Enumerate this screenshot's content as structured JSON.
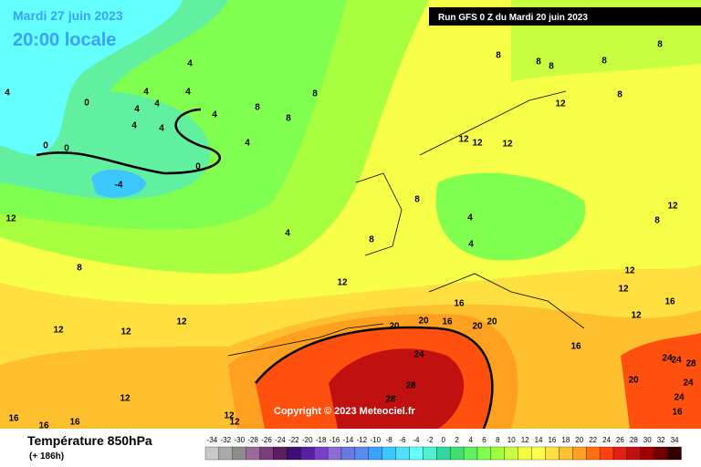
{
  "header": {
    "date": "Mardi 27 juin 2023",
    "time": "20:00 locale",
    "run": "Run GFS 0 Z du Mardi 20 juin 2023"
  },
  "copyright": "Copyright © 2023 Meteociel.fr",
  "footer": {
    "title": "Température 850hPa",
    "lead": "(+ 186h)"
  },
  "contour_labels": [
    0,
    0,
    0,
    0,
    -4,
    4,
    4,
    4,
    4,
    4,
    4,
    4,
    4,
    4,
    4,
    4,
    4,
    4,
    8,
    8,
    8,
    8,
    8,
    8,
    8,
    8,
    8,
    8,
    8,
    8,
    8,
    12,
    12,
    12,
    12,
    12,
    12,
    12,
    12,
    12,
    12,
    12,
    12,
    12,
    12,
    12,
    12,
    16,
    16,
    16,
    16,
    16,
    16,
    16,
    16,
    20,
    20,
    20,
    20,
    20,
    24,
    24,
    24,
    24,
    24,
    28,
    28,
    28
  ],
  "scale": [
    {
      "value": -34,
      "color": "#c8c8c8"
    },
    {
      "value": -32,
      "color": "#aaaaaa"
    },
    {
      "value": -30,
      "color": "#8c8c8c"
    },
    {
      "value": -28,
      "color": "#9a6a9a"
    },
    {
      "value": -26,
      "color": "#7a3c7a"
    },
    {
      "value": -24,
      "color": "#5a1f5a"
    },
    {
      "value": -22,
      "color": "#3c1070"
    },
    {
      "value": -20,
      "color": "#5a1fa0"
    },
    {
      "value": -18,
      "color": "#7a40c8"
    },
    {
      "value": -16,
      "color": "#8c6cd8"
    },
    {
      "value": -14,
      "color": "#6a7ae0"
    },
    {
      "value": -12,
      "color": "#5a8cf0"
    },
    {
      "value": -10,
      "color": "#3ca0ff"
    },
    {
      "value": -8,
      "color": "#3cc8ff"
    },
    {
      "value": -6,
      "color": "#50e0ff"
    },
    {
      "value": -4,
      "color": "#64ffff"
    },
    {
      "value": -2,
      "color": "#50f0d0"
    },
    {
      "value": 0,
      "color": "#30d8a0"
    },
    {
      "value": 2,
      "color": "#40e070"
    },
    {
      "value": 4,
      "color": "#60f060"
    },
    {
      "value": 6,
      "color": "#80ff50"
    },
    {
      "value": 8,
      "color": "#a0ff40"
    },
    {
      "value": 10,
      "color": "#c8ff40"
    },
    {
      "value": 12,
      "color": "#f0ff40"
    },
    {
      "value": 14,
      "color": "#ffff50"
    },
    {
      "value": 16,
      "color": "#ffe040"
    },
    {
      "value": 18,
      "color": "#ffc030"
    },
    {
      "value": 20,
      "color": "#ffa020"
    },
    {
      "value": 22,
      "color": "#ff7010"
    },
    {
      "value": 24,
      "color": "#ff4010"
    },
    {
      "value": 26,
      "color": "#e02010"
    },
    {
      "value": 28,
      "color": "#c01010"
    },
    {
      "value": 30,
      "color": "#a00000"
    },
    {
      "value": 32,
      "color": "#700000"
    },
    {
      "value": 34,
      "color": "#300000"
    }
  ]
}
